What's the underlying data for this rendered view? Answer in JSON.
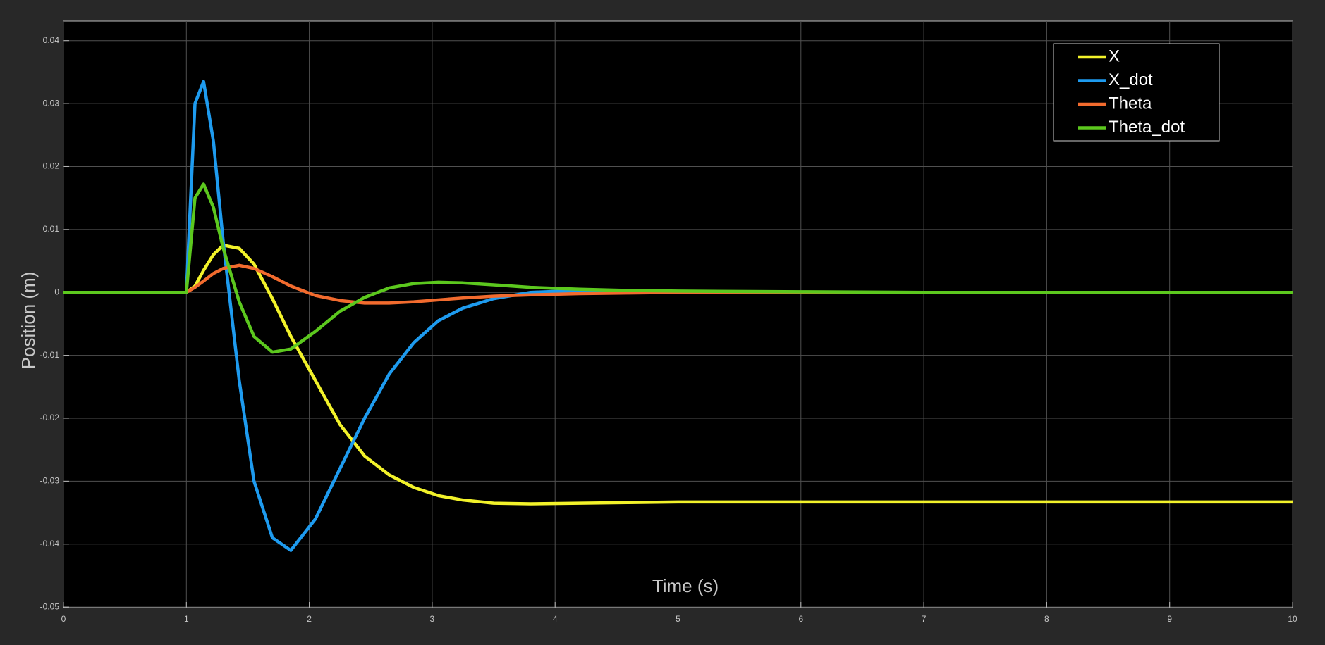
{
  "chart_data": {
    "type": "line",
    "xlabel": "Time (s)",
    "ylabel": "Position (m)",
    "x": [
      0,
      1,
      1.07,
      1.14,
      1.22,
      1.3,
      1.43,
      1.55,
      1.7,
      1.85,
      2.05,
      2.25,
      2.45,
      2.65,
      2.85,
      3.05,
      3.25,
      3.5,
      3.8,
      4.2,
      4.6,
      5,
      6,
      7,
      8,
      10
    ],
    "series": [
      {
        "name": "X",
        "color": "#f2f22a",
        "values": [
          0,
          0,
          0.001,
          0.0035,
          0.006,
          0.0075,
          0.007,
          0.0045,
          -0.001,
          -0.007,
          -0.014,
          -0.021,
          -0.026,
          -0.029,
          -0.031,
          -0.0323,
          -0.033,
          -0.0335,
          -0.0336,
          -0.0335,
          -0.0334,
          -0.0333,
          -0.0333,
          -0.0333,
          -0.0333,
          -0.0333
        ]
      },
      {
        "name": "X_dot",
        "color": "#1e9bef",
        "values": [
          0,
          0,
          0.03,
          0.0335,
          0.024,
          0.008,
          -0.014,
          -0.03,
          -0.039,
          -0.041,
          -0.036,
          -0.028,
          -0.02,
          -0.013,
          -0.008,
          -0.0045,
          -0.0025,
          -0.001,
          0,
          0.0003,
          0.0002,
          0.0001,
          0,
          0,
          0,
          0
        ]
      },
      {
        "name": "Theta",
        "color": "#f26b2e",
        "values": [
          0,
          0,
          0.0008,
          0.0018,
          0.003,
          0.0038,
          0.0043,
          0.0038,
          0.0025,
          0.001,
          -0.0005,
          -0.0013,
          -0.0017,
          -0.0017,
          -0.0015,
          -0.0012,
          -0.0009,
          -0.0006,
          -0.0004,
          -0.0002,
          -0.0001,
          0,
          0,
          0,
          0,
          0
        ]
      },
      {
        "name": "Theta_dot",
        "color": "#5cc81e",
        "values": [
          0,
          0,
          0.015,
          0.0172,
          0.0135,
          0.007,
          -0.0015,
          -0.007,
          -0.0095,
          -0.009,
          -0.0062,
          -0.003,
          -0.0008,
          0.0007,
          0.0014,
          0.0016,
          0.0015,
          0.0012,
          0.0008,
          0.0005,
          0.0003,
          0.0002,
          0.0001,
          0,
          0,
          0
        ]
      }
    ],
    "xlim": [
      0,
      10
    ],
    "xticks": [
      0,
      1,
      2,
      3,
      4,
      5,
      6,
      7,
      8,
      9,
      10
    ],
    "ylim": [
      -0.0501,
      0.0431
    ],
    "yticks": [
      -0.05,
      -0.04,
      -0.03,
      -0.02,
      -0.01,
      0,
      0.01,
      0.02,
      0.03,
      0.04
    ],
    "grid": true,
    "legend": "upper right"
  }
}
